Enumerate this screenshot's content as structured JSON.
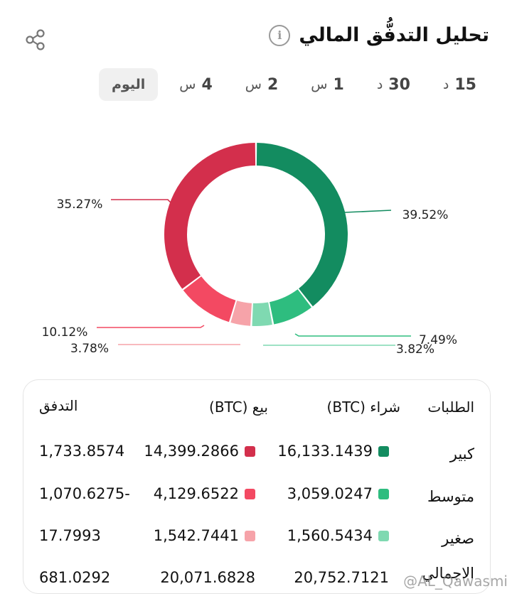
{
  "header": {
    "title": "تحليل التدفُّق المالي",
    "info_glyph": "i"
  },
  "tabs": [
    {
      "num": "15",
      "unit": "د"
    },
    {
      "num": "30",
      "unit": "د"
    },
    {
      "num": "1",
      "unit": "س"
    },
    {
      "num": "2",
      "unit": "س"
    },
    {
      "num": "4",
      "unit": "س"
    },
    {
      "num": "",
      "unit": "اليوم",
      "active": true
    }
  ],
  "chart_data": {
    "type": "pie",
    "style": "donut",
    "slices": [
      {
        "label": "39.52%",
        "value": 39.52,
        "color": "#138c60"
      },
      {
        "label": "7.49%",
        "value": 7.49,
        "color": "#2ebd7f"
      },
      {
        "label": "3.82%",
        "value": 3.82,
        "color": "#7fd9b1"
      },
      {
        "label": "3.78%",
        "value": 3.78,
        "color": "#f6a3a9"
      },
      {
        "label": "10.12%",
        "value": 10.12,
        "color": "#f34962"
      },
      {
        "label": "35.27%",
        "value": 35.27,
        "color": "#d32f4c"
      }
    ]
  },
  "table": {
    "headers": {
      "name": "الطلبات",
      "buy": "شراء (BTC)",
      "sell": "بيع (BTC)",
      "flow": "التدفق"
    },
    "rows": [
      {
        "name": "كبير",
        "buy": "16,133.1439",
        "sell": "14,399.2866",
        "flow": "1,733.8574",
        "buy_color": "#138c60",
        "sell_color": "#d32f4c"
      },
      {
        "name": "متوسط",
        "buy": "3,059.0247",
        "sell": "4,129.6522",
        "flow": "1,070.6275-",
        "buy_color": "#2ebd7f",
        "sell_color": "#f34962"
      },
      {
        "name": "صغير",
        "buy": "1,560.5434",
        "sell": "1,542.7441",
        "flow": "17.7993",
        "buy_color": "#7fd9b1",
        "sell_color": "#f6a3a9"
      },
      {
        "name": "الاجمالي",
        "buy": "20,752.7121",
        "sell": "20,071.6828",
        "flow": "681.0292"
      }
    ]
  },
  "watermark": "@AL_Qawasmi"
}
